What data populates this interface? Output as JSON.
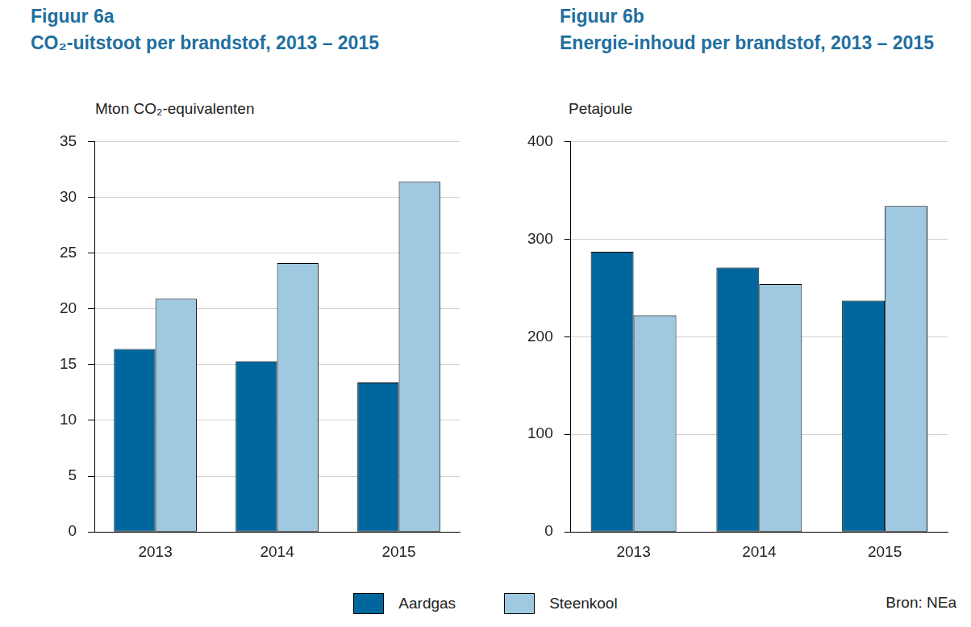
{
  "chart_data": [
    {
      "type": "bar",
      "title": [
        "Figuur 6a",
        "CO₂-uitstoot per brandstof, 2013 – 2015"
      ],
      "y_label": "Mton CO₂-equivalenten",
      "categories": [
        "2013",
        "2014",
        "2015"
      ],
      "series": [
        {
          "name": "Aardgas",
          "color": "#00679e",
          "values": [
            16.4,
            15.3,
            13.4
          ]
        },
        {
          "name": "Steenkool",
          "color": "#9fc9e1",
          "values": [
            20.9,
            24.1,
            31.4
          ]
        }
      ],
      "ylim": [
        0,
        35
      ],
      "yticks": [
        0,
        5,
        10,
        15,
        20,
        25,
        30,
        35
      ],
      "grid": true,
      "legend": "bottom"
    },
    {
      "type": "bar",
      "title": [
        "Figuur 6b",
        "Energie-inhoud per brandstof, 2013 – 2015"
      ],
      "y_label": "Petajoule",
      "categories": [
        "2013",
        "2014",
        "2015"
      ],
      "series": [
        {
          "name": "Aardgas",
          "color": "#00679e",
          "values": [
            287,
            271,
            237
          ]
        },
        {
          "name": "Steenkool",
          "color": "#9fc9e1",
          "values": [
            222,
            254,
            334
          ]
        }
      ],
      "ylim": [
        0,
        400
      ],
      "yticks": [
        0,
        100,
        200,
        300,
        400
      ],
      "grid": true,
      "legend": "bottom"
    }
  ],
  "source": "Bron: NEa"
}
